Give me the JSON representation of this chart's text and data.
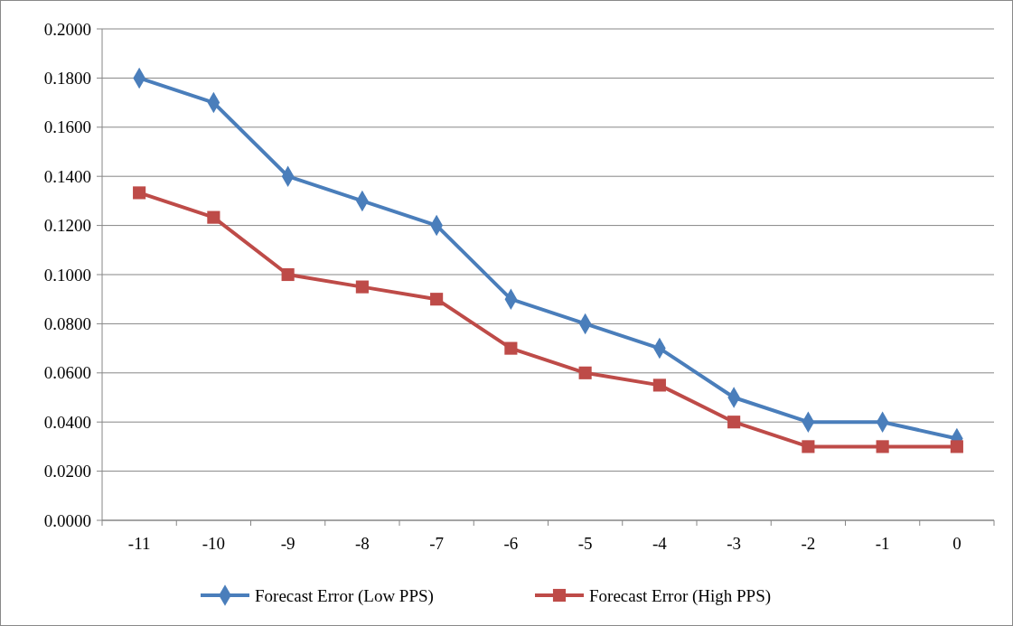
{
  "chart_data": {
    "type": "line",
    "categories": [
      "-11",
      "-10",
      "-9",
      "-8",
      "-7",
      "-6",
      "-5",
      "-4",
      "-3",
      "-2",
      "-1",
      "0"
    ],
    "series": [
      {
        "name": "Forecast Error (Low PPS)",
        "color": "#4a7ebb",
        "marker": "diamond",
        "values": [
          0.18,
          0.17,
          0.14,
          0.13,
          0.12,
          0.09,
          0.08,
          0.07,
          0.05,
          0.04,
          0.04,
          0.0333
        ]
      },
      {
        "name": "Forecast Error (High PPS)",
        "color": "#be4b48",
        "marker": "square",
        "values": [
          0.1333,
          0.1233,
          0.1,
          0.095,
          0.09,
          0.07,
          0.06,
          0.055,
          0.04,
          0.03,
          0.03,
          0.03
        ]
      }
    ],
    "ylim": [
      0,
      0.2
    ],
    "yticks": [
      {
        "value": 0,
        "label": "0.0000"
      },
      {
        "value": 0.02,
        "label": "0.0200"
      },
      {
        "value": 0.04,
        "label": "0.0400"
      },
      {
        "value": 0.06,
        "label": "0.0600"
      },
      {
        "value": 0.08,
        "label": "0.0800"
      },
      {
        "value": 0.1,
        "label": "0.1000"
      },
      {
        "value": 0.12,
        "label": "0.1200"
      },
      {
        "value": 0.14,
        "label": "0.1400"
      },
      {
        "value": 0.16,
        "label": "0.1600"
      },
      {
        "value": 0.18,
        "label": "0.1800"
      },
      {
        "value": 0.2,
        "label": "0.2000"
      }
    ],
    "grid": "y",
    "legend": "bottom",
    "line_style": "solid"
  }
}
